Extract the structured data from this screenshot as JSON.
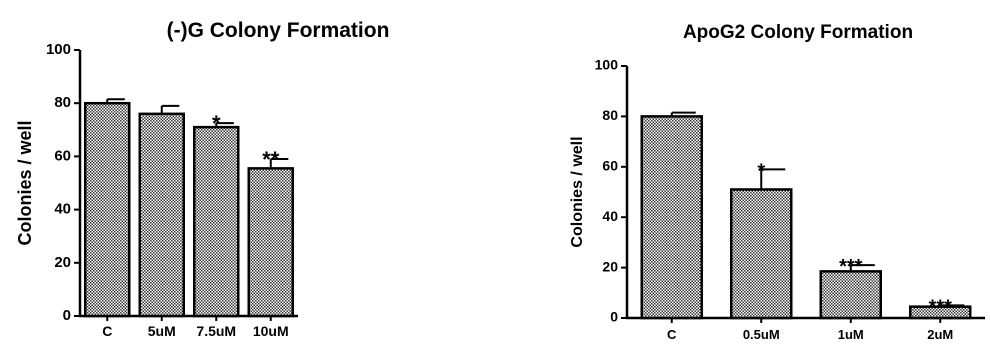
{
  "chart_data": [
    {
      "type": "bar",
      "title": "(-)G Colony Formation",
      "xlabel": "",
      "ylabel": "Colonies / well",
      "ylim": [
        0,
        100
      ],
      "yticks": [
        "0",
        "20",
        "40",
        "60",
        "80",
        "100"
      ],
      "categories": [
        "C",
        "5uM",
        "7.5uM",
        "10uM"
      ],
      "values": [
        80,
        76,
        71,
        55.5
      ],
      "errors": [
        1.5,
        3,
        1.5,
        3.5
      ],
      "significance": [
        "",
        "",
        "*",
        "**"
      ],
      "bar_fill": "checkered",
      "grid": false,
      "legend": "none"
    },
    {
      "type": "bar",
      "title": "ApoG2 Colony Formation",
      "xlabel": "",
      "ylabel": "Colonies / well",
      "ylim": [
        0,
        100
      ],
      "yticks": [
        "0",
        "20",
        "40",
        "60",
        "80",
        "100"
      ],
      "categories": [
        "C",
        "0.5uM",
        "1uM",
        "2uM"
      ],
      "values": [
        80,
        51,
        18.5,
        4.5
      ],
      "errors": [
        1.5,
        8,
        2.5,
        0.5
      ],
      "significance": [
        "",
        "*",
        "***",
        "***"
      ],
      "bar_fill": "checkered",
      "grid": false,
      "legend": "none"
    }
  ],
  "colors": {
    "bar_outline": "#000000",
    "pattern_dark": "#3a3a3a",
    "pattern_light": "#ffffff"
  }
}
